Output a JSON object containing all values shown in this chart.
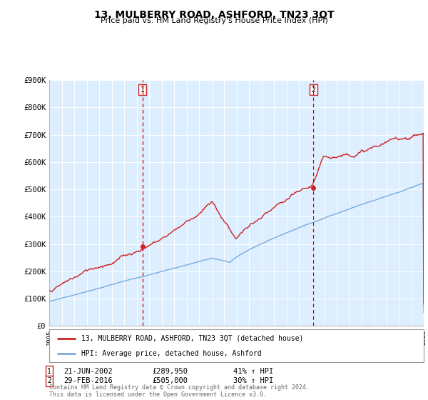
{
  "title": "13, MULBERRY ROAD, ASHFORD, TN23 3QT",
  "subtitle": "Price paid vs. HM Land Registry's House Price Index (HPI)",
  "x_start_year": 1995,
  "x_end_year": 2025,
  "y_min": 0,
  "y_max": 900000,
  "y_ticks": [
    0,
    100000,
    200000,
    300000,
    400000,
    500000,
    600000,
    700000,
    800000,
    900000
  ],
  "y_tick_labels": [
    "£0",
    "£100K",
    "£200K",
    "£300K",
    "£400K",
    "£500K",
    "£600K",
    "£700K",
    "£800K",
    "£900K"
  ],
  "hpi_color": "#7aaadd",
  "price_color": "#cc2222",
  "vline_color": "#cc0000",
  "plot_bg": "#ddeeff",
  "transaction1_year": 2002.47,
  "transaction1_price": 289950,
  "transaction1_label": "21-JUN-2002",
  "transaction1_pct": "41% ↑ HPI",
  "transaction2_year": 2016.16,
  "transaction2_price": 505000,
  "transaction2_label": "29-FEB-2016",
  "transaction2_pct": "30% ↑ HPI",
  "legend_line1": "13, MULBERRY ROAD, ASHFORD, TN23 3QT (detached house)",
  "legend_line2": "HPI: Average price, detached house, Ashford",
  "footnote": "Contains HM Land Registry data © Crown copyright and database right 2024.\nThis data is licensed under the Open Government Licence v3.0.",
  "marker_box_color": "#cc2222"
}
